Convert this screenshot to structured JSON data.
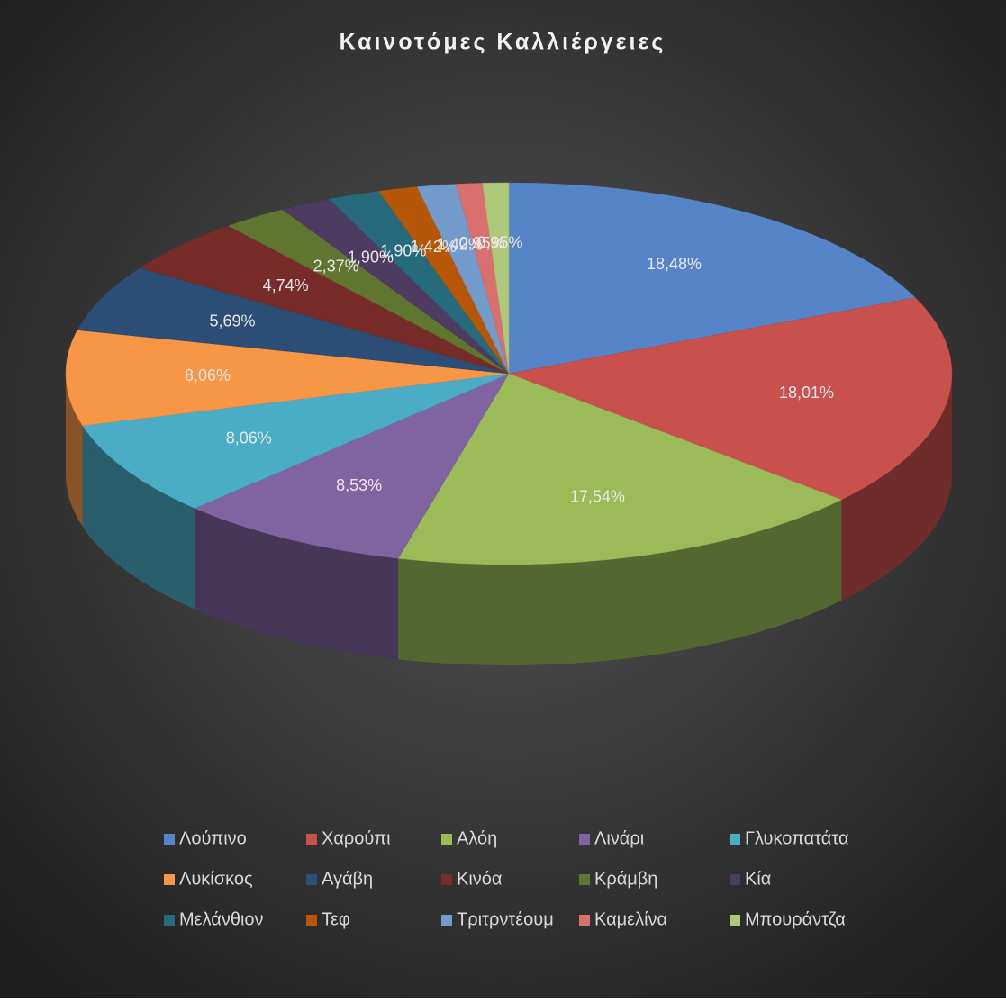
{
  "chart_data": {
    "type": "pie3d",
    "title": "Καινοτόμες Καλλιέργειες",
    "categories": [
      "Λούπινο",
      "Χαρούπι",
      "Αλόη",
      "Λινάρι",
      "Γλυκοπατάτα",
      "Λυκίσκος",
      "Αγάβη",
      "Κινόα",
      "Κράμβη",
      "Κία",
      "Μελάνθιον",
      "Τεφ",
      "Τριτρντέουμ",
      "Καμελίνα",
      "Μπουράντζα"
    ],
    "values": [
      18.48,
      18.01,
      17.54,
      8.53,
      8.06,
      8.06,
      5.69,
      4.74,
      2.37,
      1.9,
      1.9,
      1.42,
      1.42,
      0.95,
      0.95
    ],
    "value_labels": [
      "18,48%",
      "18,01%",
      "17,54%",
      "8,53%",
      "8,06%",
      "8,06%",
      "5,69%",
      "4,74%",
      "2,37%",
      "1,90%",
      "1,90%",
      "1,42%",
      "1,42%",
      "0,95%",
      "0,95%"
    ],
    "colors": [
      "#5585c8",
      "#c8504d",
      "#9bbb59",
      "#8064a2",
      "#4bacc6",
      "#f79646",
      "#2c4d75",
      "#772c2a",
      "#5f7530",
      "#4d3b62",
      "#276a7c",
      "#b65708",
      "#729aca",
      "#d9706d",
      "#afc97a"
    ],
    "legend": "bottom"
  }
}
